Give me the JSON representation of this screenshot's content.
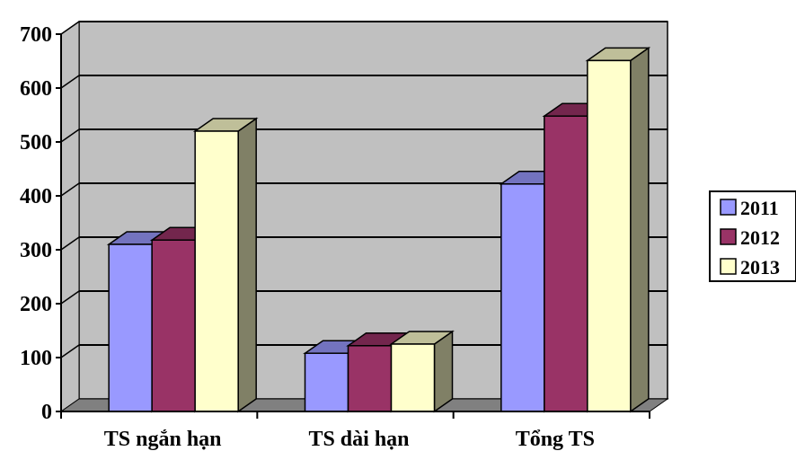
{
  "chart_data": {
    "type": "bar",
    "categories": [
      "TS ngắn hạn",
      "TS dài hạn",
      "Tổng TS"
    ],
    "series": [
      {
        "name": "2011",
        "values": [
          310,
          108,
          422
        ],
        "color": "#9999ff"
      },
      {
        "name": "2012",
        "values": [
          318,
          122,
          548
        ],
        "color": "#993366"
      },
      {
        "name": "2013",
        "values": [
          520,
          125,
          651
        ],
        "color": "#ffffcc"
      }
    ],
    "ylim": [
      0,
      700
    ],
    "yticks": [
      0,
      100,
      200,
      300,
      400,
      500,
      600,
      700
    ],
    "grid": true,
    "legend": "right",
    "wall_color": "#c0c0c0",
    "floor_color": "#808080"
  }
}
